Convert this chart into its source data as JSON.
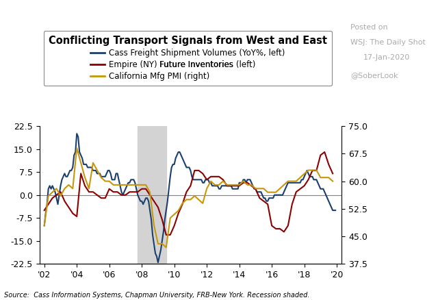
{
  "title": "Conflicting Transport Signals from West and East",
  "cass_label": "Cass Freight Shipment Volumes (YoY%, left)",
  "empire_label_pre": "Empire (NY) ",
  "empire_label_highlight": "Future Inventories",
  "empire_label_post": " (left)",
  "pmi_label": "California Mfg PMI (right)",
  "source_text": "Source:  Cass Information Systems, Chapman University, FRB-New York. Recession shaded.",
  "posted_line1": "Posted on",
  "posted_line2": "WSJ: The Daily Shot",
  "posted_line3": "17-Jan-2020",
  "posted_line4": "@SoberLook",
  "recession_start": 2007.75,
  "recession_end": 2009.5,
  "ylim_left": [
    -22.5,
    22.5
  ],
  "ylim_right": [
    37.5,
    75.0
  ],
  "yticks_left": [
    -22.5,
    -15.0,
    -7.5,
    0.0,
    7.5,
    15.0,
    22.5
  ],
  "yticks_right": [
    37.5,
    45.0,
    52.5,
    60.0,
    67.5,
    75.0
  ],
  "cass_color": "#1a3f6f",
  "empire_color": "#8b0000",
  "pmi_color": "#c8960c",
  "line_width": 1.5,
  "xlim": [
    2001.7,
    2020.3
  ],
  "xtick_positions": [
    2002,
    2004,
    2006,
    2008,
    2010,
    2012,
    2014,
    2016,
    2018,
    2020
  ],
  "xtick_labels": [
    "'02",
    "'04",
    "'06",
    "'08",
    "'10",
    "'12",
    "'14",
    "'16",
    "'18",
    "'20"
  ],
  "cass_x": [
    2002.0,
    2002.083,
    2002.167,
    2002.25,
    2002.333,
    2002.417,
    2002.5,
    2002.583,
    2002.667,
    2002.75,
    2002.833,
    2002.917,
    2003.0,
    2003.083,
    2003.167,
    2003.25,
    2003.333,
    2003.417,
    2003.5,
    2003.583,
    2003.667,
    2003.75,
    2003.833,
    2003.917,
    2004.0,
    2004.083,
    2004.167,
    2004.25,
    2004.333,
    2004.417,
    2004.5,
    2004.583,
    2004.667,
    2004.75,
    2004.833,
    2004.917,
    2005.0,
    2005.083,
    2005.167,
    2005.25,
    2005.333,
    2005.417,
    2005.5,
    2005.583,
    2005.667,
    2005.75,
    2005.833,
    2005.917,
    2006.0,
    2006.083,
    2006.167,
    2006.25,
    2006.333,
    2006.417,
    2006.5,
    2006.583,
    2006.667,
    2006.75,
    2006.833,
    2006.917,
    2007.0,
    2007.083,
    2007.167,
    2007.25,
    2007.333,
    2007.417,
    2007.5,
    2007.583,
    2007.667,
    2007.75,
    2007.833,
    2007.917,
    2008.0,
    2008.083,
    2008.167,
    2008.25,
    2008.333,
    2008.417,
    2008.5,
    2008.583,
    2008.667,
    2008.75,
    2008.833,
    2008.917,
    2009.0,
    2009.083,
    2009.167,
    2009.25,
    2009.333,
    2009.417,
    2009.5,
    2009.583,
    2009.667,
    2009.75,
    2009.833,
    2009.917,
    2010.0,
    2010.083,
    2010.167,
    2010.25,
    2010.333,
    2010.417,
    2010.5,
    2010.583,
    2010.667,
    2010.75,
    2010.833,
    2010.917,
    2011.0,
    2011.083,
    2011.167,
    2011.25,
    2011.333,
    2011.417,
    2011.5,
    2011.583,
    2011.667,
    2011.75,
    2011.833,
    2011.917,
    2012.0,
    2012.083,
    2012.167,
    2012.25,
    2012.333,
    2012.417,
    2012.5,
    2012.583,
    2012.667,
    2012.75,
    2012.833,
    2012.917,
    2013.0,
    2013.083,
    2013.167,
    2013.25,
    2013.333,
    2013.417,
    2013.5,
    2013.583,
    2013.667,
    2013.75,
    2013.833,
    2013.917,
    2014.0,
    2014.083,
    2014.167,
    2014.25,
    2014.333,
    2014.417,
    2014.5,
    2014.583,
    2014.667,
    2014.75,
    2014.833,
    2014.917,
    2015.0,
    2015.083,
    2015.167,
    2015.25,
    2015.333,
    2015.417,
    2015.5,
    2015.583,
    2015.667,
    2015.75,
    2015.833,
    2015.917,
    2016.0,
    2016.083,
    2016.167,
    2016.25,
    2016.333,
    2016.417,
    2016.5,
    2016.583,
    2016.667,
    2016.75,
    2016.833,
    2016.917,
    2017.0,
    2017.083,
    2017.167,
    2017.25,
    2017.333,
    2017.417,
    2017.5,
    2017.583,
    2017.667,
    2017.75,
    2017.833,
    2017.917,
    2018.0,
    2018.083,
    2018.167,
    2018.25,
    2018.333,
    2018.417,
    2018.5,
    2018.583,
    2018.667,
    2018.75,
    2018.833,
    2018.917,
    2019.0,
    2019.083,
    2019.167,
    2019.25,
    2019.333,
    2019.417,
    2019.5,
    2019.583,
    2019.667,
    2019.75,
    2019.833,
    2019.917
  ],
  "cass_y": [
    -10,
    -6,
    -3,
    2,
    3,
    2,
    3,
    2,
    1,
    -1,
    -3,
    0,
    3,
    5,
    6,
    7,
    6,
    6,
    7,
    8,
    8,
    9,
    13,
    14,
    20,
    19,
    14,
    13,
    12,
    10,
    10,
    10,
    9,
    9,
    9,
    9,
    8,
    8,
    8,
    7,
    7,
    7,
    6,
    6,
    6,
    6,
    7,
    8,
    8,
    7,
    5,
    5,
    5,
    7,
    7,
    5,
    3,
    1,
    0,
    1,
    2,
    3,
    4,
    4,
    5,
    5,
    5,
    4,
    2,
    0,
    -1,
    -2,
    -2,
    -3,
    -2,
    -1,
    -1,
    -2,
    -5,
    -8,
    -13,
    -16,
    -19,
    -20,
    -22,
    -20,
    -18,
    -15,
    -12,
    -8,
    -5,
    -2,
    2,
    6,
    9,
    10,
    10,
    12,
    13,
    14,
    14,
    13,
    12,
    11,
    10,
    9,
    9,
    9,
    8,
    6,
    5,
    5,
    5,
    5,
    5,
    5,
    5,
    4,
    4,
    5,
    5,
    5,
    4,
    4,
    3,
    3,
    3,
    3,
    3,
    2,
    2,
    3,
    3,
    3,
    3,
    3,
    3,
    3,
    3,
    2,
    2,
    2,
    2,
    2,
    4,
    4,
    4,
    5,
    5,
    4,
    5,
    5,
    5,
    4,
    3,
    2,
    2,
    1,
    1,
    1,
    1,
    0,
    -1,
    -1,
    -2,
    -2,
    -1,
    -1,
    -1,
    -1,
    0,
    0,
    0,
    0,
    0,
    0,
    0,
    1,
    2,
    3,
    4,
    4,
    4,
    4,
    4,
    4,
    4,
    4,
    4,
    4,
    5,
    5,
    6,
    7,
    8,
    7,
    6,
    6,
    6,
    5,
    5,
    5,
    4,
    3,
    2,
    2,
    2,
    1,
    0,
    -1,
    -2,
    -3,
    -4,
    -5,
    -5,
    -5
  ],
  "empire_x": [
    2002.0,
    2002.25,
    2002.5,
    2002.75,
    2003.0,
    2003.25,
    2003.5,
    2003.75,
    2004.0,
    2004.25,
    2004.5,
    2004.75,
    2005.0,
    2005.25,
    2005.5,
    2005.75,
    2006.0,
    2006.25,
    2006.5,
    2006.75,
    2007.0,
    2007.25,
    2007.5,
    2007.75,
    2008.0,
    2008.25,
    2008.5,
    2008.75,
    2009.0,
    2009.25,
    2009.5,
    2009.75,
    2010.0,
    2010.25,
    2010.5,
    2010.75,
    2011.0,
    2011.25,
    2011.5,
    2011.75,
    2012.0,
    2012.25,
    2012.5,
    2012.75,
    2013.0,
    2013.25,
    2013.5,
    2013.75,
    2014.0,
    2014.25,
    2014.5,
    2014.75,
    2015.0,
    2015.25,
    2015.5,
    2015.75,
    2016.0,
    2016.25,
    2016.5,
    2016.75,
    2017.0,
    2017.25,
    2017.5,
    2017.75,
    2018.0,
    2018.25,
    2018.5,
    2018.75,
    2019.0,
    2019.25,
    2019.5,
    2019.75
  ],
  "empire_y": [
    -5,
    -3,
    -1,
    0,
    1,
    -2,
    -4,
    -6,
    -7,
    7,
    3,
    1,
    1,
    0,
    -1,
    -1,
    2,
    1,
    1,
    0,
    0,
    1,
    1,
    1,
    2,
    2,
    0,
    -2,
    -4,
    -8,
    -13,
    -13,
    -10,
    -6,
    -3,
    1,
    3,
    8,
    8,
    7,
    5,
    6,
    6,
    6,
    5,
    3,
    3,
    3,
    3,
    4,
    4,
    3,
    2,
    -1,
    -2,
    -3,
    -10,
    -11,
    -11,
    -12,
    -10,
    -3,
    1,
    2,
    3,
    5,
    8,
    8,
    13,
    14,
    10,
    7
  ],
  "pmi_x": [
    2002.0,
    2002.25,
    2002.5,
    2002.75,
    2003.0,
    2003.25,
    2003.5,
    2003.75,
    2004.0,
    2004.25,
    2004.5,
    2004.75,
    2005.0,
    2005.25,
    2005.5,
    2005.75,
    2006.0,
    2006.25,
    2006.5,
    2006.75,
    2007.0,
    2007.25,
    2007.5,
    2007.75,
    2008.0,
    2008.25,
    2008.5,
    2008.75,
    2009.0,
    2009.25,
    2009.5,
    2009.75,
    2010.0,
    2010.25,
    2010.5,
    2010.75,
    2011.0,
    2011.25,
    2011.5,
    2011.75,
    2012.0,
    2012.25,
    2012.5,
    2012.75,
    2013.0,
    2013.25,
    2013.5,
    2013.75,
    2014.0,
    2014.25,
    2014.5,
    2014.75,
    2015.0,
    2015.25,
    2015.5,
    2015.75,
    2016.0,
    2016.25,
    2016.5,
    2016.75,
    2017.0,
    2017.25,
    2017.5,
    2017.75,
    2018.0,
    2018.25,
    2018.5,
    2018.75,
    2019.0,
    2019.25,
    2019.5,
    2019.75
  ],
  "pmi_y": [
    48,
    56,
    57,
    58,
    56,
    58,
    59,
    58,
    69,
    65,
    61,
    58,
    65,
    63,
    61,
    60,
    60,
    59,
    59,
    59,
    59,
    59,
    59,
    59,
    59,
    59,
    57,
    48,
    43,
    43,
    42,
    50,
    51,
    52,
    54,
    55,
    55,
    56,
    55,
    54,
    58,
    60,
    59,
    59,
    60,
    59,
    59,
    59,
    59,
    60,
    59,
    59,
    58,
    58,
    58,
    57,
    57,
    57,
    58,
    59,
    60,
    60,
    60,
    61,
    62,
    63,
    63,
    63,
    61,
    61,
    61,
    60
  ]
}
